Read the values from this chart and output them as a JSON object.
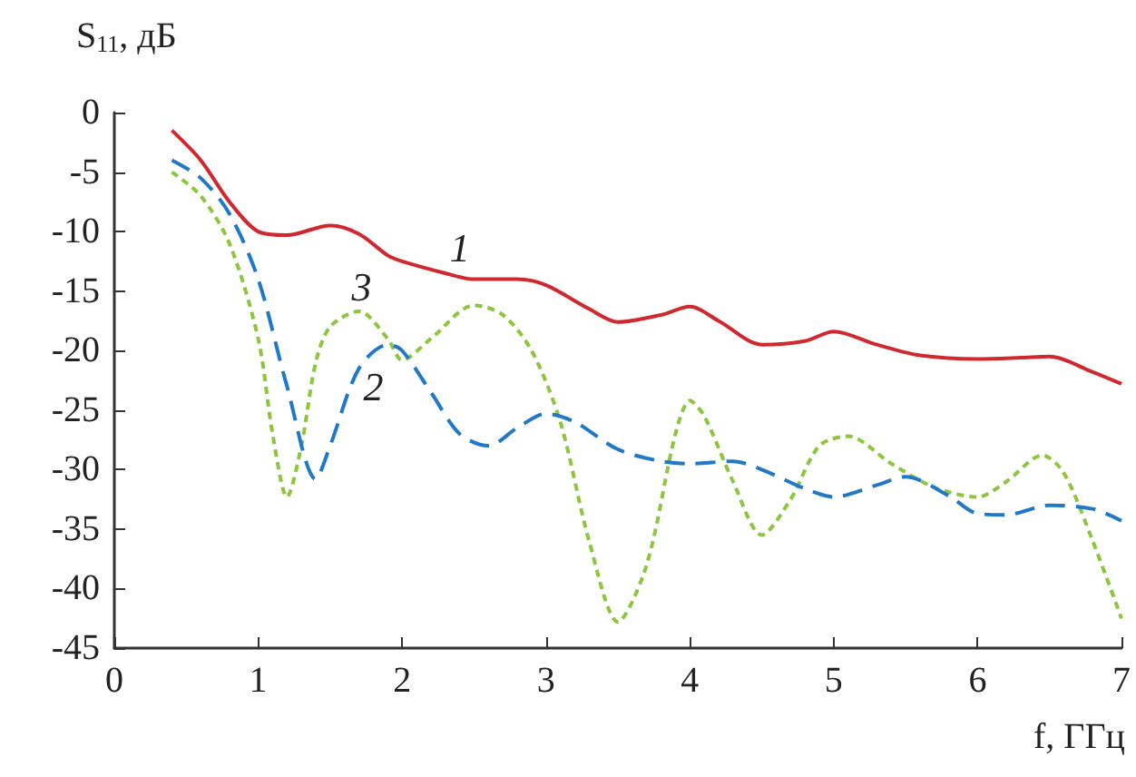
{
  "chart_data": {
    "type": "line",
    "xlabel": "f, ГГц",
    "ylabel": "S$_{11}$, дБ",
    "xlim": [
      0,
      7
    ],
    "xticks": [
      0,
      1,
      2,
      3,
      4,
      5,
      6,
      7
    ],
    "ylim": [
      -45,
      0
    ],
    "yticks": [
      -45,
      -40,
      -35,
      -30,
      -25,
      -20,
      -15,
      -10,
      -5,
      0
    ],
    "grid": false,
    "legend": false,
    "marker": "none",
    "series": [
      {
        "name": "1",
        "color": "#d0282e",
        "line_style": "solid",
        "x": [
          0.4,
          0.6,
          0.8,
          1.0,
          1.2,
          1.5,
          1.7,
          1.9,
          2.0,
          2.3,
          2.5,
          2.8,
          3.0,
          3.3,
          3.5,
          3.8,
          4.0,
          4.2,
          4.5,
          4.8,
          5.0,
          5.3,
          5.6,
          6.0,
          6.3,
          6.5,
          6.8,
          7.0
        ],
        "values": [
          -1.5,
          -4,
          -7.5,
          -10,
          -10.3,
          -9.5,
          -10.2,
          -12,
          -12.5,
          -13.5,
          -14,
          -14,
          -14.5,
          -16.5,
          -17.6,
          -17,
          -16.3,
          -17.5,
          -19.5,
          -19.2,
          -18.4,
          -19.5,
          -20.4,
          -20.7,
          -20.6,
          -20.5,
          -21.8,
          -22.8
        ]
      },
      {
        "name": "2",
        "color": "#1f78c8",
        "line_style": "dashed",
        "x": [
          0.4,
          0.6,
          0.8,
          1.0,
          1.2,
          1.4,
          1.5,
          1.7,
          1.9,
          2.0,
          2.2,
          2.4,
          2.6,
          2.8,
          3.0,
          3.2,
          3.5,
          3.8,
          4.0,
          4.3,
          4.5,
          4.8,
          5.0,
          5.3,
          5.5,
          5.8,
          6.0,
          6.2,
          6.5,
          6.8,
          7.0
        ],
        "values": [
          -4,
          -5.5,
          -8.5,
          -14,
          -23,
          -30.8,
          -28,
          -21.5,
          -19.5,
          -20,
          -23.5,
          -27,
          -28,
          -26.5,
          -25.3,
          -26,
          -28.3,
          -29.3,
          -29.5,
          -29.3,
          -30,
          -31.6,
          -32.3,
          -31.3,
          -30.6,
          -32.2,
          -33.7,
          -33.8,
          -33,
          -33.3,
          -34.3
        ]
      },
      {
        "name": "3",
        "color": "#8cc63f",
        "line_style": "dotted",
        "x": [
          0.4,
          0.6,
          0.8,
          1.0,
          1.1,
          1.2,
          1.3,
          1.4,
          1.5,
          1.7,
          1.9,
          2.0,
          2.2,
          2.5,
          2.7,
          2.9,
          3.1,
          3.3,
          3.5,
          3.7,
          3.9,
          4.0,
          4.1,
          4.3,
          4.5,
          4.7,
          4.9,
          5.1,
          5.4,
          5.7,
          6.0,
          6.2,
          6.45,
          6.6,
          6.8,
          7.0
        ],
        "values": [
          -5,
          -7,
          -11,
          -19,
          -27,
          -32.3,
          -28,
          -21,
          -18,
          -16.7,
          -19,
          -20.8,
          -19,
          -16.2,
          -17,
          -20,
          -26,
          -36,
          -42.8,
          -38,
          -27,
          -24.2,
          -25.5,
          -31,
          -35.5,
          -32.5,
          -28,
          -27.2,
          -29.5,
          -31.5,
          -32.3,
          -31,
          -28.8,
          -30.3,
          -36,
          -42.5
        ]
      }
    ]
  }
}
